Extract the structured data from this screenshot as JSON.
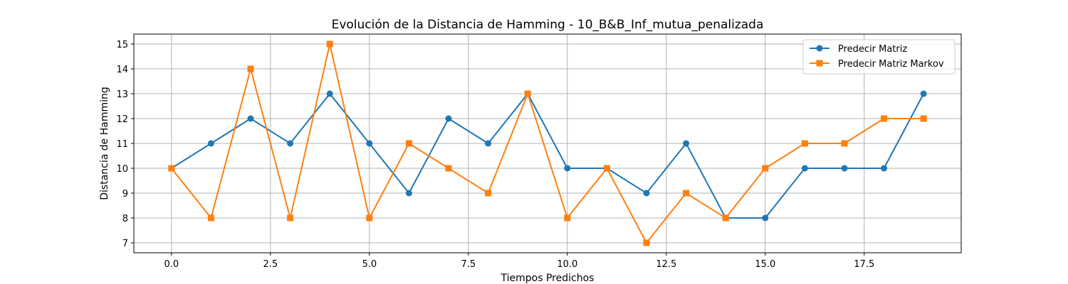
{
  "chart_data": {
    "type": "line",
    "title": "Evolución de la Distancia de Hamming - 10_B&B_Inf_mutua_penalizada",
    "xlabel": "Tiempos Predichos",
    "ylabel": "Distancia de Hamming",
    "x": [
      0,
      1,
      2,
      3,
      4,
      5,
      6,
      7,
      8,
      9,
      10,
      11,
      12,
      13,
      14,
      15,
      16,
      17,
      18,
      19
    ],
    "xlim": [
      -0.95,
      19.95
    ],
    "ylim": [
      6.6,
      15.4
    ],
    "xticks": [
      0.0,
      2.5,
      5.0,
      7.5,
      10.0,
      12.5,
      15.0,
      17.5
    ],
    "xtick_labels": [
      "0.0",
      "2.5",
      "5.0",
      "7.5",
      "10.0",
      "12.5",
      "15.0",
      "17.5"
    ],
    "yticks": [
      7,
      8,
      9,
      10,
      11,
      12,
      13,
      14,
      15
    ],
    "ytick_labels": [
      "7",
      "8",
      "9",
      "10",
      "11",
      "12",
      "13",
      "14",
      "15"
    ],
    "grid": true,
    "legend_position": "top-right",
    "series": [
      {
        "name": "Predecir Matriz",
        "color": "#1f77b4",
        "marker": "circle",
        "values": [
          10,
          11,
          12,
          11,
          13,
          11,
          9,
          12,
          11,
          13,
          10,
          10,
          9,
          11,
          8,
          8,
          10,
          10,
          10,
          13
        ]
      },
      {
        "name": "Predecir Matriz Markov",
        "color": "#ff7f0e",
        "marker": "square",
        "values": [
          10,
          8,
          14,
          8,
          15,
          8,
          11,
          10,
          9,
          13,
          8,
          10,
          7,
          9,
          8,
          10,
          11,
          11,
          12,
          12
        ]
      }
    ]
  }
}
